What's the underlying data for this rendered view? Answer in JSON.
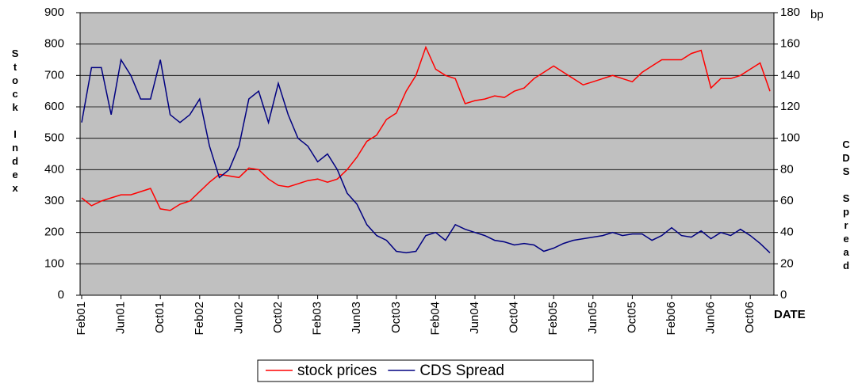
{
  "chart_data": {
    "type": "line",
    "x_label": "DATE",
    "y_label": "Stock Index",
    "y2_label": "CDS Spread",
    "y2_unit": "bp",
    "categories": [
      "Feb01",
      null,
      null,
      null,
      "Jun01",
      null,
      null,
      null,
      "Oct01",
      null,
      null,
      null,
      "Feb02",
      null,
      null,
      null,
      "Jun02",
      null,
      null,
      null,
      "Oct02",
      null,
      null,
      null,
      "Feb03",
      null,
      null,
      null,
      "Jun03",
      null,
      null,
      null,
      "Oct03",
      null,
      null,
      null,
      "Feb04",
      null,
      null,
      null,
      "Jun04",
      null,
      null,
      null,
      "Oct04",
      null,
      null,
      null,
      "Feb05",
      null,
      null,
      null,
      "Jun05",
      null,
      null,
      null,
      "Oct05",
      null,
      null,
      null,
      "Feb06",
      null,
      null,
      null,
      "Jun06",
      null,
      null,
      null,
      "Oct06",
      null,
      null
    ],
    "series": [
      {
        "name": "stock prices",
        "color": "#ff0000",
        "axis": "y",
        "values": [
          310,
          285,
          300,
          310,
          320,
          320,
          330,
          340,
          275,
          270,
          290,
          300,
          330,
          360,
          385,
          380,
          375,
          405,
          400,
          370,
          350,
          345,
          355,
          365,
          370,
          360,
          370,
          400,
          440,
          490,
          510,
          560,
          580,
          650,
          700,
          790,
          720,
          700,
          690,
          610,
          620,
          625,
          635,
          630,
          650,
          660,
          690,
          710,
          730,
          710,
          690,
          670,
          680,
          690,
          700,
          690,
          680,
          710,
          730,
          750,
          750,
          750,
          770,
          780,
          660,
          690,
          690,
          700,
          720,
          740,
          650
        ]
      },
      {
        "name": "CDS Spread",
        "color": "#000080",
        "axis": "y2",
        "values": [
          110,
          145,
          145,
          115,
          150,
          140,
          125,
          125,
          150,
          115,
          110,
          115,
          125,
          95,
          75,
          80,
          95,
          125,
          130,
          110,
          135,
          115,
          100,
          95,
          85,
          90,
          80,
          65,
          58,
          45,
          38,
          35,
          28,
          27,
          28,
          38,
          40,
          35,
          45,
          42,
          40,
          38,
          35,
          34,
          32,
          33,
          32,
          28,
          30,
          33,
          35,
          36,
          37,
          38,
          40,
          38,
          39,
          39,
          35,
          38,
          43,
          38,
          37,
          41,
          36,
          40,
          38,
          42,
          38,
          33,
          27
        ]
      }
    ],
    "ylim": [
      0,
      900
    ],
    "yticks": [
      0,
      100,
      200,
      300,
      400,
      500,
      600,
      700,
      800,
      900
    ],
    "y2lim": [
      0,
      180
    ],
    "y2ticks": [
      0,
      20,
      40,
      60,
      80,
      100,
      120,
      140,
      160,
      180
    ],
    "grid": true,
    "legend": "bottom",
    "background": "#c0c0c0"
  }
}
